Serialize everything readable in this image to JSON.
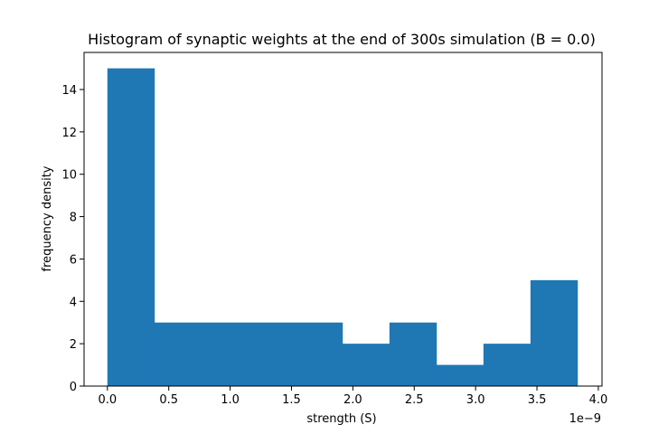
{
  "chart_data": {
    "type": "bar",
    "title": "Histogram of synaptic weights at the end of 300s simulation (B = 0.0)",
    "xlabel": "strength (S)",
    "ylabel": "frequency density",
    "x_offset_text": "1e−9",
    "x_scale_exponent": -9,
    "xlim": [
      -0.19,
      4.03
    ],
    "ylim": [
      0,
      15.75
    ],
    "x_ticks": [
      {
        "value": 0.0,
        "label": "0.0"
      },
      {
        "value": 0.5,
        "label": "0.5"
      },
      {
        "value": 1.0,
        "label": "1.0"
      },
      {
        "value": 1.5,
        "label": "1.5"
      },
      {
        "value": 2.0,
        "label": "2.0"
      },
      {
        "value": 2.5,
        "label": "2.5"
      },
      {
        "value": 3.0,
        "label": "3.0"
      },
      {
        "value": 3.5,
        "label": "3.5"
      },
      {
        "value": 4.0,
        "label": "4.0"
      }
    ],
    "y_ticks": [
      {
        "value": 0,
        "label": "0"
      },
      {
        "value": 2,
        "label": "2"
      },
      {
        "value": 4,
        "label": "4"
      },
      {
        "value": 6,
        "label": "6"
      },
      {
        "value": 8,
        "label": "8"
      },
      {
        "value": 10,
        "label": "10"
      },
      {
        "value": 12,
        "label": "12"
      },
      {
        "value": 14,
        "label": "14"
      }
    ],
    "bin_edges": [
      0.0,
      0.383,
      0.766,
      1.149,
      1.532,
      1.915,
      2.298,
      2.681,
      3.064,
      3.447,
      3.83
    ],
    "values": [
      15,
      3,
      3,
      3,
      3,
      2,
      3,
      1,
      2,
      5
    ],
    "bar_color": "#1f77b4",
    "grid": false
  }
}
